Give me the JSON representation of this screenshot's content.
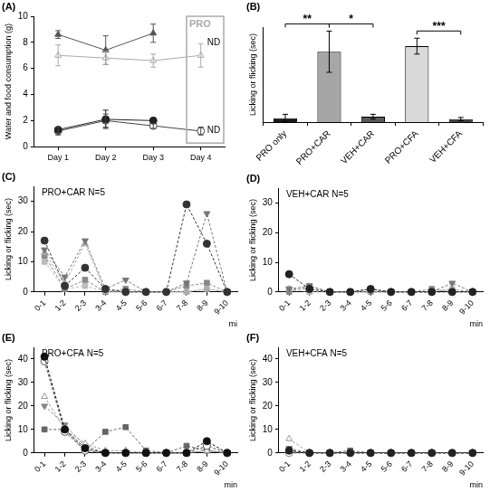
{
  "chart_data": [
    {
      "panel": "(A)",
      "type": "line",
      "categories": [
        "Day 1",
        "Day 2",
        "Day 3",
        "Day 4"
      ],
      "y_label": "Water and food consumption (g)",
      "ylim": [
        0,
        10
      ],
      "yticks": [
        0,
        2,
        4,
        6,
        8,
        10
      ],
      "grid": false,
      "series": [
        {
          "color": "#555555",
          "marker": "triangle",
          "values": [
            8.6,
            7.4,
            8.7,
            null
          ],
          "errors": [
            0.3,
            1.1,
            0.7,
            null
          ]
        },
        {
          "color": "#aaaaaa",
          "marker": "open-triangle",
          "values": [
            7.0,
            6.8,
            6.6,
            7.0
          ],
          "errors": [
            0.8,
            0.5,
            0.5,
            0.9
          ]
        },
        {
          "color": "#222222",
          "marker": "circle",
          "values": [
            1.3,
            2.1,
            2.0,
            null
          ],
          "errors": [
            0.2,
            0.7,
            0.2,
            null
          ]
        },
        {
          "color": "#444444",
          "marker": "open-circle",
          "values": [
            1.2,
            2.0,
            1.6,
            1.2
          ],
          "errors": [
            0.3,
            0.5,
            0.2,
            0.3
          ]
        }
      ],
      "annotations": [
        {
          "text": "PRO",
          "box": "Day 4"
        },
        {
          "text": "ND",
          "series": 0
        },
        {
          "text": "ND",
          "series": 2
        }
      ]
    },
    {
      "panel": "(B)",
      "type": "bar",
      "categories": [
        "PRO only",
        "PRO+CAR",
        "VEH+CAR",
        "PRO+CFA",
        "VEH+CFA"
      ],
      "values": [
        2.5,
        44.5,
        3.5,
        48,
        2
      ],
      "errors": [
        2.5,
        13,
        1.5,
        5,
        1
      ],
      "colors": [
        "#1a1a1a",
        "#a6a6a6",
        "#595959",
        "#d9d9d9",
        "#404040"
      ],
      "y_label": "Licking or flicking (sec)",
      "ylim": [
        0,
        60
      ],
      "tick_labels": "x",
      "grid": false,
      "annotations": [
        {
          "text": "**",
          "between": [
            "PRO only",
            "PRO+CAR"
          ]
        },
        {
          "text": "*",
          "between": [
            "PRO+CAR",
            "VEH+CAR"
          ]
        },
        {
          "text": "***",
          "between": [
            "PRO+CFA",
            "VEH+CFA"
          ]
        }
      ]
    },
    {
      "panel": "(C)",
      "type": "line",
      "title": "PRO+CAR N=5",
      "categories": [
        "0-1",
        "1-2",
        "2-3",
        "3-4",
        "4-5",
        "5-6",
        "6-7",
        "7-8",
        "8-9",
        "9-10"
      ],
      "x_label": "mi",
      "y_label": "Licking or flicking (sec)",
      "ylim": [
        0,
        35
      ],
      "yticks": [
        0,
        10,
        20,
        30
      ],
      "grid": false,
      "series": [
        {
          "color": "#333333",
          "marker": "circle",
          "line_style": "dashed",
          "values": [
            17,
            2,
            8,
            1,
            0,
            0,
            0,
            29,
            16,
            0
          ]
        },
        {
          "color": "#777777",
          "marker": "triangle-down",
          "line_style": "dashed",
          "values": [
            14,
            5,
            17,
            1,
            4,
            0,
            0,
            3,
            26,
            0
          ]
        },
        {
          "color": "#aaaaaa",
          "marker": "triangle",
          "line_style": "dashed",
          "values": [
            13,
            3,
            16,
            0,
            0,
            0,
            0,
            0,
            1,
            0
          ]
        },
        {
          "color": "#888888",
          "marker": "square",
          "line_style": "dashed",
          "values": [
            12,
            1,
            4,
            0,
            1,
            0,
            0,
            2,
            3,
            0
          ]
        },
        {
          "color": "#bbbbbb",
          "marker": "square",
          "line_style": "dashed",
          "values": [
            10,
            1,
            2,
            0,
            0,
            0,
            0,
            0,
            1,
            0
          ]
        }
      ]
    },
    {
      "panel": "(D)",
      "type": "line",
      "title": "VEH+CAR N=5",
      "categories": [
        "0-1",
        "1-2",
        "2-3",
        "3-4",
        "4-5",
        "5-6",
        "6-7",
        "7-8",
        "8-9",
        "9-10"
      ],
      "x_label": "min",
      "y_label": "Licking or flicking (sec)",
      "ylim": [
        0,
        35
      ],
      "yticks": [
        0,
        10,
        20,
        30
      ],
      "grid": false,
      "series": [
        {
          "color": "#222222",
          "marker": "circle",
          "line_style": "dashed",
          "values": [
            6,
            1,
            0,
            0,
            1,
            0,
            0,
            0,
            0,
            0
          ]
        },
        {
          "color": "#777777",
          "marker": "triangle-down",
          "line_style": "dashed",
          "values": [
            1,
            2,
            0,
            0,
            0,
            0,
            0,
            0,
            3,
            0
          ]
        },
        {
          "color": "#aaaaaa",
          "marker": "triangle",
          "line_style": "dashed",
          "values": [
            1,
            1,
            0,
            0,
            0,
            0,
            0,
            0,
            1,
            0
          ]
        },
        {
          "color": "#888888",
          "marker": "square",
          "line_style": "dashed",
          "values": [
            0,
            2,
            0,
            0,
            1,
            0,
            0,
            1,
            0,
            0
          ]
        },
        {
          "color": "#bbbbbb",
          "marker": "square",
          "line_style": "dashed",
          "values": [
            1,
            0,
            0,
            0,
            0,
            0,
            0,
            0,
            1,
            0
          ]
        }
      ]
    },
    {
      "panel": "(E)",
      "type": "line",
      "title": "PRO+CFA N=5",
      "categories": [
        "0-1",
        "1-2",
        "2-3",
        "3-4",
        "4-5",
        "5-6",
        "6-7",
        "7-8",
        "8-9",
        "9-10"
      ],
      "x_label": "min",
      "y_label": "Licking or flicking (sec)",
      "ylim": [
        0,
        45
      ],
      "yticks": [
        0,
        10,
        20,
        30,
        40
      ],
      "grid": false,
      "series": [
        {
          "color": "#111111",
          "marker": "circle",
          "line_style": "dashed",
          "values": [
            41,
            10,
            2,
            0,
            0,
            0,
            0,
            0,
            5,
            0
          ]
        },
        {
          "color": "#555555",
          "marker": "open-circle",
          "line_style": "dashed",
          "values": [
            39,
            9,
            1,
            0,
            0,
            0,
            0,
            0,
            3,
            0
          ]
        },
        {
          "color": "#999999",
          "marker": "open-triangle",
          "line_style": "dashed",
          "values": [
            24,
            10,
            4,
            1,
            1,
            0,
            0,
            0,
            1,
            0
          ]
        },
        {
          "color": "#666666",
          "marker": "square",
          "line_style": "dashed",
          "values": [
            10,
            10,
            1,
            9,
            11,
            1,
            0,
            3,
            1,
            0
          ]
        },
        {
          "color": "#888888",
          "marker": "triangle-down",
          "line_style": "dashed",
          "values": [
            20,
            12,
            3,
            0,
            0,
            0,
            0,
            0,
            1,
            0
          ]
        }
      ]
    },
    {
      "panel": "(F)",
      "type": "line",
      "title": "VEH+CFA N=5",
      "categories": [
        "0-1",
        "1-2",
        "2-3",
        "3-4",
        "4-5",
        "5-6",
        "6-7",
        "7-8",
        "8-9",
        "9-10"
      ],
      "x_label": "min",
      "y_label": "Licking or flicking (sec)",
      "ylim": [
        0,
        45
      ],
      "yticks": [
        0,
        10,
        20,
        30,
        40
      ],
      "grid": false,
      "series": [
        {
          "color": "#222222",
          "marker": "circle",
          "line_style": "dashed",
          "values": [
            1,
            0,
            0,
            0,
            0,
            0,
            0,
            0,
            0,
            0
          ]
        },
        {
          "color": "#999999",
          "marker": "open-triangle",
          "line_style": "dashed",
          "values": [
            6,
            0,
            0,
            0,
            0,
            0,
            0,
            0,
            0,
            0
          ]
        },
        {
          "color": "#777777",
          "marker": "triangle-down",
          "line_style": "dashed",
          "values": [
            2,
            0,
            0,
            0,
            0,
            0,
            0,
            0,
            0,
            0
          ]
        },
        {
          "color": "#666666",
          "marker": "square",
          "line_style": "dashed",
          "values": [
            1,
            0,
            0,
            1,
            0,
            0,
            0,
            0,
            0,
            0
          ]
        },
        {
          "color": "#888888",
          "marker": "open-circle",
          "line_style": "dashed",
          "values": [
            0,
            0,
            0,
            0,
            0,
            0,
            0,
            0,
            0,
            0
          ]
        }
      ]
    }
  ]
}
